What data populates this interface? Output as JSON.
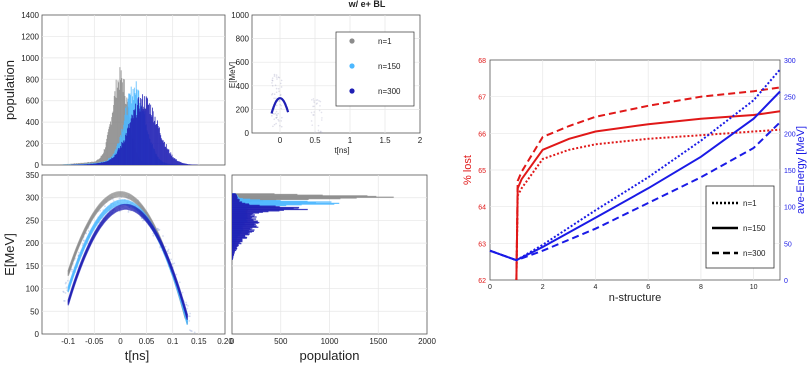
{
  "colors": {
    "gray": "#8c8c8c",
    "light_blue": "#4db8ff",
    "dark_blue": "#1f1fb4",
    "red": "#e01818",
    "blue": "#1a1ae6",
    "frame": "#555555",
    "grid": "#e6e6e6"
  },
  "chart_data": [
    {
      "id": "population-vs-t",
      "type": "area",
      "title": "",
      "xlabel": "",
      "ylabel": "population",
      "xlim": [
        -0.15,
        0.2
      ],
      "ylim": [
        0,
        1400
      ],
      "yticks": [
        "0",
        "200",
        "400",
        "600",
        "800",
        "1000",
        "1200",
        "1400"
      ],
      "grid": true,
      "series": [
        {
          "color_key": "gray",
          "peak_t": 0.0,
          "peak": 880,
          "width": 0.022
        },
        {
          "color_key": "light_blue",
          "peak_t": 0.028,
          "peak": 760,
          "width": 0.028
        },
        {
          "color_key": "dark_blue",
          "peak_t": 0.045,
          "peak": 640,
          "width": 0.038
        }
      ]
    },
    {
      "id": "inset-energy-vs-t",
      "type": "line",
      "title": "w/ e+ BL",
      "xlabel": "t[ns]",
      "ylabel": "E[MeV]",
      "xlim": [
        -0.4,
        2
      ],
      "ylim": [
        0,
        1000
      ],
      "xticks": [
        "0",
        "0.5",
        "1",
        "1.5",
        "2"
      ],
      "yticks": [
        "0",
        "200",
        "400",
        "600",
        "800",
        "1000"
      ],
      "grid": true,
      "legend": {
        "position": "top-right",
        "entries": [
          {
            "label": "n=1",
            "color_key": "gray"
          },
          {
            "label": "n=150",
            "color_key": "light_blue"
          },
          {
            "label": "n=300",
            "color_key": "dark_blue"
          }
        ]
      }
    },
    {
      "id": "energy-vs-t",
      "type": "scatter",
      "title": "",
      "xlabel": "t[ns]",
      "ylabel": "E[MeV]",
      "xlim": [
        -0.15,
        0.2
      ],
      "ylim": [
        0,
        350
      ],
      "xticks": [
        "-0.1",
        "-0.05",
        "0",
        "0.05",
        "0.1",
        "0.15",
        "0.20"
      ],
      "yticks": [
        "0",
        "50",
        "100",
        "150",
        "200",
        "250",
        "300",
        "350"
      ],
      "grid": true,
      "series": [
        {
          "color_key": "gray",
          "t0": 0.0,
          "e_peak": 308
        },
        {
          "color_key": "light_blue",
          "t0": 0.005,
          "e_peak": 290
        },
        {
          "color_key": "dark_blue",
          "t0": 0.01,
          "e_peak": 280
        }
      ]
    },
    {
      "id": "energy-histogram",
      "type": "bar",
      "title": "",
      "xlabel": "population",
      "ylabel": "",
      "xlim": [
        0,
        2000
      ],
      "ylim": [
        0,
        350
      ],
      "xticks": [
        "0",
        "500",
        "1000",
        "1500",
        "2000"
      ],
      "grid": true,
      "series": [
        {
          "color_key": "gray",
          "e_peak": 302,
          "peak": 1650
        },
        {
          "color_key": "light_blue",
          "e_peak": 288,
          "peak": 1100
        },
        {
          "color_key": "dark_blue",
          "e_peak": 276,
          "peak": 720
        }
      ]
    },
    {
      "id": "lost-and-energy-vs-n",
      "type": "line",
      "title": "",
      "xlabel": "n-structure",
      "ylabel": "% lost",
      "ylabel_right": "ave-Energy [MeV]",
      "xlim": [
        0,
        11
      ],
      "ylim": [
        62,
        68
      ],
      "ylim_right": [
        0,
        300
      ],
      "xticks": [
        "0",
        "2",
        "4",
        "6",
        "8",
        "10"
      ],
      "yticks": [
        "62",
        "63",
        "64",
        "65",
        "66",
        "67",
        "68"
      ],
      "yticks_right": [
        "0",
        "50",
        "100",
        "150",
        "200",
        "250",
        "300"
      ],
      "grid": true,
      "legend": {
        "position": "bottom-right",
        "entries": [
          {
            "label": "n=1",
            "dash": "dot"
          },
          {
            "label": "n=150",
            "dash": "solid"
          },
          {
            "label": "n=300",
            "dash": "dash"
          }
        ]
      },
      "lost_series": [
        {
          "name": "n=1",
          "x": [
            1,
            1.05,
            1.2,
            2,
            3,
            4,
            6,
            8,
            10,
            11
          ],
          "y": [
            62.0,
            64.3,
            64.5,
            65.3,
            65.55,
            65.7,
            65.85,
            65.95,
            66.05,
            66.1
          ]
        },
        {
          "name": "n=150",
          "x": [
            1,
            1.05,
            1.2,
            2,
            3,
            4,
            6,
            8,
            10,
            11
          ],
          "y": [
            62.0,
            64.5,
            64.75,
            65.55,
            65.85,
            66.05,
            66.25,
            66.4,
            66.5,
            66.6
          ]
        },
        {
          "name": "n=300",
          "x": [
            1,
            1.05,
            1.2,
            2,
            3,
            4,
            6,
            8,
            10,
            11
          ],
          "y": [
            62.0,
            64.7,
            64.95,
            65.9,
            66.2,
            66.45,
            66.75,
            67.0,
            67.15,
            67.25
          ]
        }
      ],
      "energy_series": [
        {
          "name": "n=1",
          "x": [
            0,
            1,
            2,
            4,
            6,
            8,
            10,
            11
          ],
          "y": [
            40,
            27,
            48,
            95,
            140,
            190,
            245,
            287
          ]
        },
        {
          "name": "n=150",
          "x": [
            0,
            1,
            2,
            4,
            6,
            8,
            10,
            11
          ],
          "y": [
            40,
            27,
            45,
            85,
            125,
            168,
            220,
            257
          ]
        },
        {
          "name": "n=300",
          "x": [
            0,
            1,
            2,
            4,
            6,
            8,
            10,
            11
          ],
          "y": [
            40,
            27,
            40,
            70,
            105,
            140,
            180,
            215
          ]
        }
      ]
    }
  ]
}
